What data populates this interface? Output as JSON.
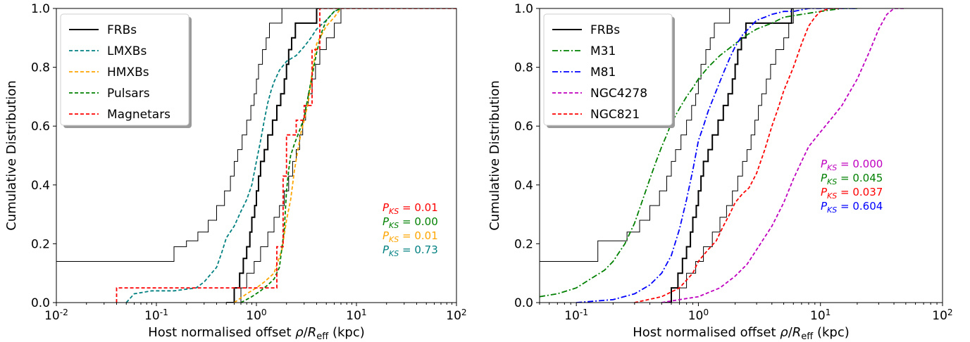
{
  "chart_data": [
    {
      "type": "line",
      "xscale": "log",
      "xlim": [
        0.01,
        100
      ],
      "ylim": [
        0,
        1
      ],
      "xlabel": "Host normalised offset ρ/R_eff (kpc)",
      "ylabel": "Cumulative Distribution",
      "xticks": [
        "10^-2",
        "10^-1",
        "10^0",
        "10^1",
        "10^2"
      ],
      "yticks": [
        "0.0",
        "0.2",
        "0.4",
        "0.6",
        "0.8",
        "1.0"
      ],
      "legend_position": "top-left",
      "series": [
        {
          "name": "FRBs",
          "color": "#000000",
          "style": "solid",
          "step": true,
          "x": [
            0.5,
            0.6,
            0.68,
            0.74,
            0.8,
            0.86,
            0.9,
            0.96,
            1.0,
            1.05,
            1.1,
            1.2,
            1.3,
            1.45,
            1.6,
            1.75,
            1.9,
            2.0,
            2.1,
            2.25,
            2.45,
            4.0,
            4.2
          ],
          "y": [
            0,
            0.05,
            0.1,
            0.15,
            0.19,
            0.24,
            0.29,
            0.33,
            0.38,
            0.43,
            0.48,
            0.52,
            0.57,
            0.62,
            0.67,
            0.71,
            0.76,
            0.81,
            0.86,
            0.9,
            0.95,
            1.0,
            1.0
          ]
        },
        {
          "name": "",
          "color": "#000000",
          "style": "thin",
          "step": true,
          "x": [
            0.01,
            0.15,
            0.2,
            0.26,
            0.33,
            0.4,
            0.48,
            0.55,
            0.6,
            0.65,
            0.72,
            0.8,
            0.88,
            0.95,
            1.0,
            1.05,
            1.15,
            1.25,
            1.35,
            1.5,
            1.8,
            2.3,
            3.5
          ],
          "y": [
            0.14,
            0.19,
            0.21,
            0.24,
            0.28,
            0.33,
            0.38,
            0.43,
            0.48,
            0.52,
            0.57,
            0.62,
            0.67,
            0.71,
            0.76,
            0.81,
            0.86,
            0.9,
            0.95,
            0.95,
            1.0,
            1.0,
            1.0
          ]
        },
        {
          "name": "",
          "color": "#000000",
          "style": "thin",
          "step": true,
          "x": [
            0.55,
            0.7,
            0.8,
            0.95,
            1.1,
            1.3,
            1.5,
            1.7,
            1.9,
            2.1,
            2.3,
            2.5,
            2.7,
            2.9,
            3.1,
            3.3,
            3.6,
            3.9,
            4.3,
            5.0,
            6.0,
            7.0
          ],
          "y": [
            0,
            0.05,
            0.1,
            0.14,
            0.19,
            0.24,
            0.29,
            0.33,
            0.38,
            0.43,
            0.48,
            0.52,
            0.57,
            0.62,
            0.67,
            0.71,
            0.76,
            0.81,
            0.86,
            0.9,
            0.95,
            1.0
          ]
        },
        {
          "name": "LMXBs",
          "color": "#008080",
          "style": "dashed",
          "step": false,
          "x": [
            0.05,
            0.06,
            0.09,
            0.15,
            0.25,
            0.3,
            0.4,
            0.45,
            0.5,
            0.6,
            0.7,
            0.8,
            0.9,
            1.0,
            1.1,
            1.2,
            1.3,
            1.4,
            1.5,
            1.7,
            2.0,
            2.5,
            3.0,
            3.5,
            4.0,
            5.0,
            6.0,
            7.0
          ],
          "y": [
            0.0,
            0.03,
            0.04,
            0.04,
            0.05,
            0.07,
            0.12,
            0.17,
            0.22,
            0.26,
            0.31,
            0.35,
            0.4,
            0.48,
            0.55,
            0.62,
            0.68,
            0.72,
            0.75,
            0.79,
            0.82,
            0.84,
            0.87,
            0.9,
            0.93,
            0.96,
            0.99,
            1.0
          ]
        },
        {
          "name": "HMXBs",
          "color": "#ffa500",
          "style": "dashed",
          "step": false,
          "x": [
            0.6,
            0.8,
            1.0,
            1.2,
            1.5,
            1.8,
            2.0,
            2.2,
            2.4,
            2.6,
            2.8,
            3.0,
            3.3,
            3.6,
            4.0,
            5.0,
            6.0,
            7.0
          ],
          "y": [
            0.0,
            0.03,
            0.05,
            0.07,
            0.1,
            0.18,
            0.28,
            0.35,
            0.45,
            0.52,
            0.58,
            0.62,
            0.68,
            0.78,
            0.88,
            0.94,
            0.97,
            1.0
          ]
        },
        {
          "name": "Pulsars",
          "color": "#008000",
          "style": "dashed",
          "step": false,
          "x": [
            0.7,
            0.9,
            1.1,
            1.3,
            1.5,
            1.7,
            1.9,
            2.0,
            2.1,
            2.2,
            2.4,
            2.6,
            2.8,
            3.0,
            3.2,
            3.5,
            4.0,
            4.5,
            5.0,
            6.0,
            7.0
          ],
          "y": [
            0.0,
            0.02,
            0.04,
            0.06,
            0.08,
            0.12,
            0.25,
            0.38,
            0.45,
            0.5,
            0.54,
            0.57,
            0.6,
            0.63,
            0.68,
            0.75,
            0.85,
            0.92,
            0.96,
            0.99,
            1.0
          ]
        },
        {
          "name": "Magnetars",
          "color": "#ff0000",
          "style": "dashed",
          "step": true,
          "x": [
            0.04,
            0.04,
            1.6,
            1.6,
            1.85,
            1.85,
            2.0,
            2.0,
            2.5,
            2.5,
            3.0,
            3.0,
            3.6,
            3.6,
            4.3,
            4.3,
            100
          ],
          "y": [
            0.0,
            0.05,
            0.05,
            0.19,
            0.19,
            0.43,
            0.43,
            0.57,
            0.57,
            0.62,
            0.62,
            0.67,
            0.67,
            0.86,
            0.86,
            1.0,
            1.0
          ]
        }
      ],
      "annotations": [
        {
          "text": "P_KS = 0.01",
          "color": "#ff0000"
        },
        {
          "text": "P_KS = 0.00",
          "color": "#008000"
        },
        {
          "text": "P_KS = 0.01",
          "color": "#ffa500"
        },
        {
          "text": "P_KS = 0.73",
          "color": "#008080"
        }
      ]
    },
    {
      "type": "line",
      "xscale": "log",
      "xlim": [
        0.05,
        100
      ],
      "ylim": [
        0,
        1
      ],
      "xlabel": "Host normalised offset ρ/R_eff (kpc)",
      "ylabel": "Cumulative Distribution",
      "xticks": [
        "10^-1",
        "10^0",
        "10^1",
        "10^2"
      ],
      "yticks": [
        "0.0",
        "0.2",
        "0.4",
        "0.6",
        "0.8",
        "1.0"
      ],
      "legend_position": "top-left",
      "series": [
        {
          "name": "FRBs",
          "color": "#000000",
          "style": "solid",
          "step": true,
          "x": [
            0.5,
            0.6,
            0.68,
            0.74,
            0.8,
            0.86,
            0.9,
            0.96,
            1.0,
            1.05,
            1.1,
            1.2,
            1.3,
            1.45,
            1.6,
            1.75,
            1.9,
            2.0,
            2.1,
            2.25,
            2.45,
            5.8,
            6.0
          ],
          "y": [
            0,
            0.05,
            0.1,
            0.15,
            0.19,
            0.24,
            0.29,
            0.33,
            0.38,
            0.43,
            0.48,
            0.52,
            0.57,
            0.62,
            0.67,
            0.71,
            0.76,
            0.81,
            0.86,
            0.9,
            0.95,
            1.0,
            1.0
          ]
        },
        {
          "name": "",
          "color": "#000000",
          "style": "thin",
          "step": true,
          "x": [
            0.05,
            0.15,
            0.2,
            0.26,
            0.33,
            0.4,
            0.48,
            0.55,
            0.6,
            0.65,
            0.72,
            0.8,
            0.88,
            0.95,
            1.0,
            1.05,
            1.15,
            1.25,
            1.35,
            1.5,
            1.8,
            2.3,
            4.5
          ],
          "y": [
            0.14,
            0.21,
            0.21,
            0.24,
            0.28,
            0.33,
            0.38,
            0.43,
            0.48,
            0.52,
            0.57,
            0.62,
            0.67,
            0.71,
            0.76,
            0.81,
            0.86,
            0.9,
            0.95,
            0.95,
            1.0,
            1.0,
            1.0
          ]
        },
        {
          "name": "",
          "color": "#000000",
          "style": "thin",
          "step": true,
          "x": [
            0.6,
            0.7,
            0.8,
            0.95,
            1.1,
            1.3,
            1.5,
            1.7,
            1.9,
            2.1,
            2.3,
            2.5,
            2.7,
            2.9,
            3.1,
            3.3,
            3.6,
            3.9,
            4.3,
            5.0,
            5.5,
            6.0
          ],
          "y": [
            0,
            0.05,
            0.1,
            0.14,
            0.19,
            0.24,
            0.29,
            0.33,
            0.38,
            0.43,
            0.48,
            0.52,
            0.57,
            0.62,
            0.67,
            0.71,
            0.76,
            0.81,
            0.86,
            0.9,
            0.95,
            1.0
          ]
        },
        {
          "name": "M31",
          "color": "#008000",
          "style": "dashdot",
          "step": false,
          "x": [
            0.05,
            0.07,
            0.1,
            0.13,
            0.17,
            0.2,
            0.25,
            0.3,
            0.35,
            0.4,
            0.45,
            0.5,
            0.55,
            0.6,
            0.7,
            0.8,
            0.9,
            1.0,
            1.2,
            1.5,
            2.0,
            2.5,
            3.0,
            4.0,
            5.0,
            7.0,
            10.0,
            15.0,
            20.0
          ],
          "y": [
            0.02,
            0.03,
            0.05,
            0.08,
            0.11,
            0.14,
            0.2,
            0.27,
            0.35,
            0.42,
            0.48,
            0.53,
            0.57,
            0.61,
            0.66,
            0.7,
            0.73,
            0.76,
            0.8,
            0.84,
            0.88,
            0.91,
            0.93,
            0.95,
            0.97,
            0.98,
            0.99,
            1.0,
            1.0
          ]
        },
        {
          "name": "M81",
          "color": "#0000ff",
          "style": "dashdot",
          "step": false,
          "x": [
            0.1,
            0.2,
            0.3,
            0.4,
            0.5,
            0.6,
            0.7,
            0.8,
            0.9,
            1.0,
            1.1,
            1.2,
            1.4,
            1.6,
            1.8,
            2.0,
            2.3,
            2.7,
            3.0,
            3.5,
            4.0,
            5.0,
            6.0,
            8.0,
            10.0,
            15.0,
            20.0
          ],
          "y": [
            0.0,
            0.01,
            0.03,
            0.06,
            0.1,
            0.16,
            0.25,
            0.35,
            0.45,
            0.55,
            0.6,
            0.65,
            0.72,
            0.78,
            0.83,
            0.87,
            0.91,
            0.94,
            0.96,
            0.97,
            0.98,
            0.99,
            0.99,
            1.0,
            1.0,
            1.0,
            1.0
          ]
        },
        {
          "name": "NGC4278",
          "color": "#bf00bf",
          "style": "dashed",
          "step": false,
          "x": [
            0.5,
            0.7,
            1.0,
            1.5,
            2.0,
            2.5,
            3.0,
            4.0,
            5.0,
            6.0,
            7.0,
            8.0,
            10.0,
            12.0,
            15.0,
            20.0,
            25.0,
            30.0,
            35.0,
            40.0,
            50.0
          ],
          "y": [
            0.0,
            0.01,
            0.02,
            0.05,
            0.09,
            0.13,
            0.18,
            0.26,
            0.34,
            0.42,
            0.48,
            0.53,
            0.58,
            0.62,
            0.67,
            0.76,
            0.85,
            0.93,
            0.98,
            1.0,
            1.0
          ]
        },
        {
          "name": "NGC821",
          "color": "#ff0000",
          "style": "dashed",
          "step": false,
          "x": [
            0.3,
            0.5,
            0.7,
            0.9,
            1.0,
            1.2,
            1.4,
            1.6,
            1.8,
            2.0,
            2.3,
            2.6,
            3.0,
            3.5,
            4.0,
            4.5,
            5.0,
            6.0,
            7.0,
            8.0,
            9.0,
            10.0,
            12.0,
            15.0
          ],
          "y": [
            0.0,
            0.02,
            0.05,
            0.1,
            0.14,
            0.18,
            0.21,
            0.26,
            0.3,
            0.34,
            0.37,
            0.39,
            0.44,
            0.52,
            0.6,
            0.66,
            0.72,
            0.8,
            0.88,
            0.94,
            0.97,
            0.99,
            1.0,
            1.0
          ]
        }
      ],
      "annotations": [
        {
          "text": "P_KS = 0.000",
          "color": "#bf00bf"
        },
        {
          "text": "P_KS = 0.045",
          "color": "#008000"
        },
        {
          "text": "P_KS = 0.037",
          "color": "#ff0000"
        },
        {
          "text": "P_KS = 0.604",
          "color": "#0000ff"
        }
      ]
    }
  ]
}
